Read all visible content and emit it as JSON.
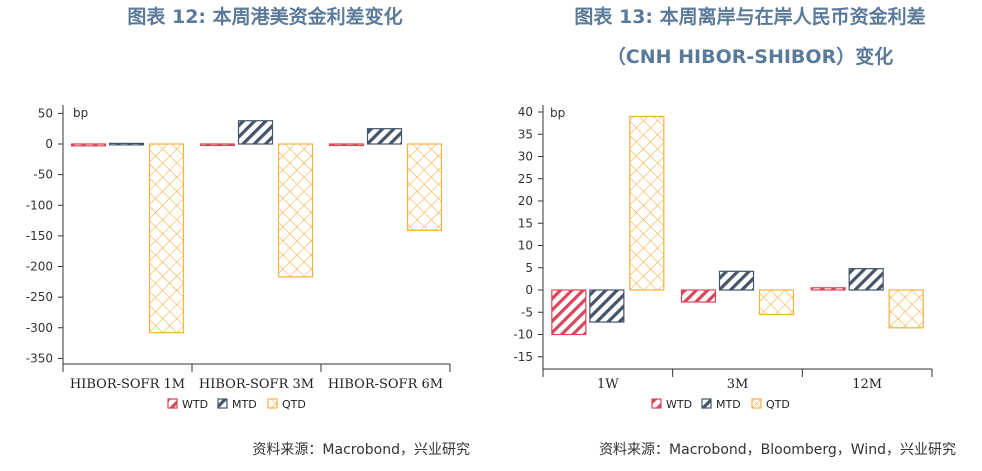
{
  "figures": [
    {
      "title": "图表 12: 本周港美资金利差变化",
      "source": "资料来源：Macrobond，兴业研究"
    },
    {
      "title_line1": "图表 13: 本周离岸与在岸人民币资金利差",
      "title_line2": "（CNH HIBOR-SHIBOR）变化",
      "source": "资料来源：Macrobond，Bloomberg，Wind，兴业研究"
    }
  ],
  "colors": {
    "WTD": "#d9465a",
    "MTD": "#44546a",
    "QTD": "#f5b041"
  },
  "chart_data": [
    {
      "type": "bar",
      "unit_label": "bp",
      "categories": [
        "HIBOR-SOFR 1M",
        "HIBOR-SOFR 3M",
        "HIBOR-SOFR 6M"
      ],
      "series": [
        {
          "name": "WTD",
          "values": [
            -3,
            -2,
            -1
          ]
        },
        {
          "name": "MTD",
          "values": [
            1,
            38,
            25
          ]
        },
        {
          "name": "QTD",
          "values": [
            -308,
            -217,
            -141
          ]
        }
      ],
      "ylim": [
        -370,
        55
      ],
      "yticks": [
        50,
        0,
        -50,
        -100,
        -150,
        -200,
        -250,
        -300,
        -350
      ],
      "legend": "bottom"
    },
    {
      "type": "bar",
      "unit_label": "bp",
      "categories": [
        "1W",
        "3M",
        "12M"
      ],
      "series": [
        {
          "name": "WTD",
          "values": [
            -10,
            -2.7,
            0.5
          ]
        },
        {
          "name": "MTD",
          "values": [
            -7.2,
            4.2,
            4.8
          ]
        },
        {
          "name": "QTD",
          "values": [
            39,
            -5.5,
            -8.5
          ]
        }
      ],
      "ylim": [
        -17,
        42
      ],
      "yticks": [
        40,
        35,
        30,
        25,
        20,
        15,
        10,
        5,
        0,
        -5,
        -10,
        -15
      ],
      "legend": "bottom"
    }
  ]
}
